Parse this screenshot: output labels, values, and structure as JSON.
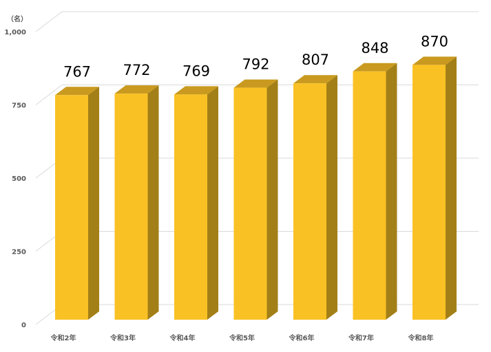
{
  "chart_data": {
    "type": "bar3d",
    "y_label": "（名）",
    "categories": [
      "令和2年",
      "令和3年",
      "令和4年",
      "令和5年",
      "令和6年",
      "令和7年",
      "令和8年"
    ],
    "values": [
      767,
      772,
      769,
      792,
      807,
      848,
      870
    ],
    "color": "#f9c124",
    "ylim": [
      0,
      1000
    ],
    "yticks": [
      0,
      250,
      500,
      750,
      {
        "value": 1000,
        "label": "1,000"
      }
    ],
    "grid": true
  }
}
